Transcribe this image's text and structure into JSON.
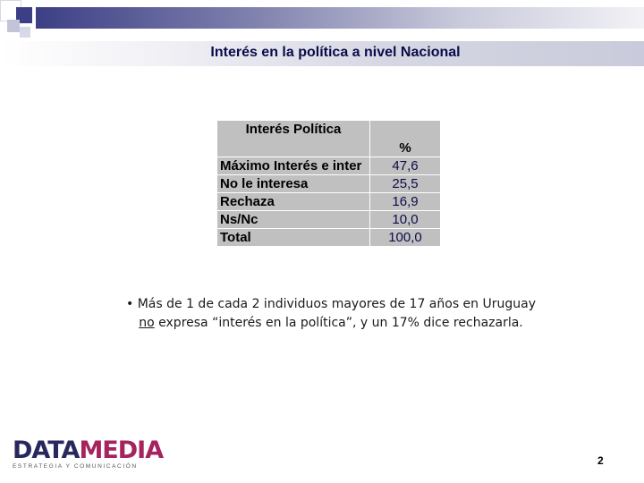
{
  "header": {
    "title": "Interés en la política a nivel Nacional"
  },
  "table": {
    "header_label": "Interés Política",
    "header_unit": "%",
    "rows": [
      {
        "label": "Máximo Interés e inter",
        "value": "47,6"
      },
      {
        "label": "No le interesa",
        "value": "25,5"
      },
      {
        "label": "Rechaza",
        "value": "16,9"
      },
      {
        "label": "Ns/Nc",
        "value": "10,0"
      },
      {
        "label": "Total",
        "value": "100,0"
      }
    ]
  },
  "body": {
    "bullet": "•",
    "text_before": " Más de 1 de cada 2 individuos mayores de 17 años en Uruguay ",
    "text_emphasis": "no",
    "text_after": " expresa “interés en la política”, y un 17% dice rechazarla."
  },
  "logo": {
    "data": "DATA",
    "media": "MEDIA",
    "tagline": "ESTRATEGIA Y COMUNICACIÓN"
  },
  "footer": {
    "page_number": "2"
  },
  "colors": {
    "accent": "#3d3f86",
    "title": "#0b0b4a",
    "table_bg": "#c0c0c0",
    "logo_media": "#a5235e"
  }
}
